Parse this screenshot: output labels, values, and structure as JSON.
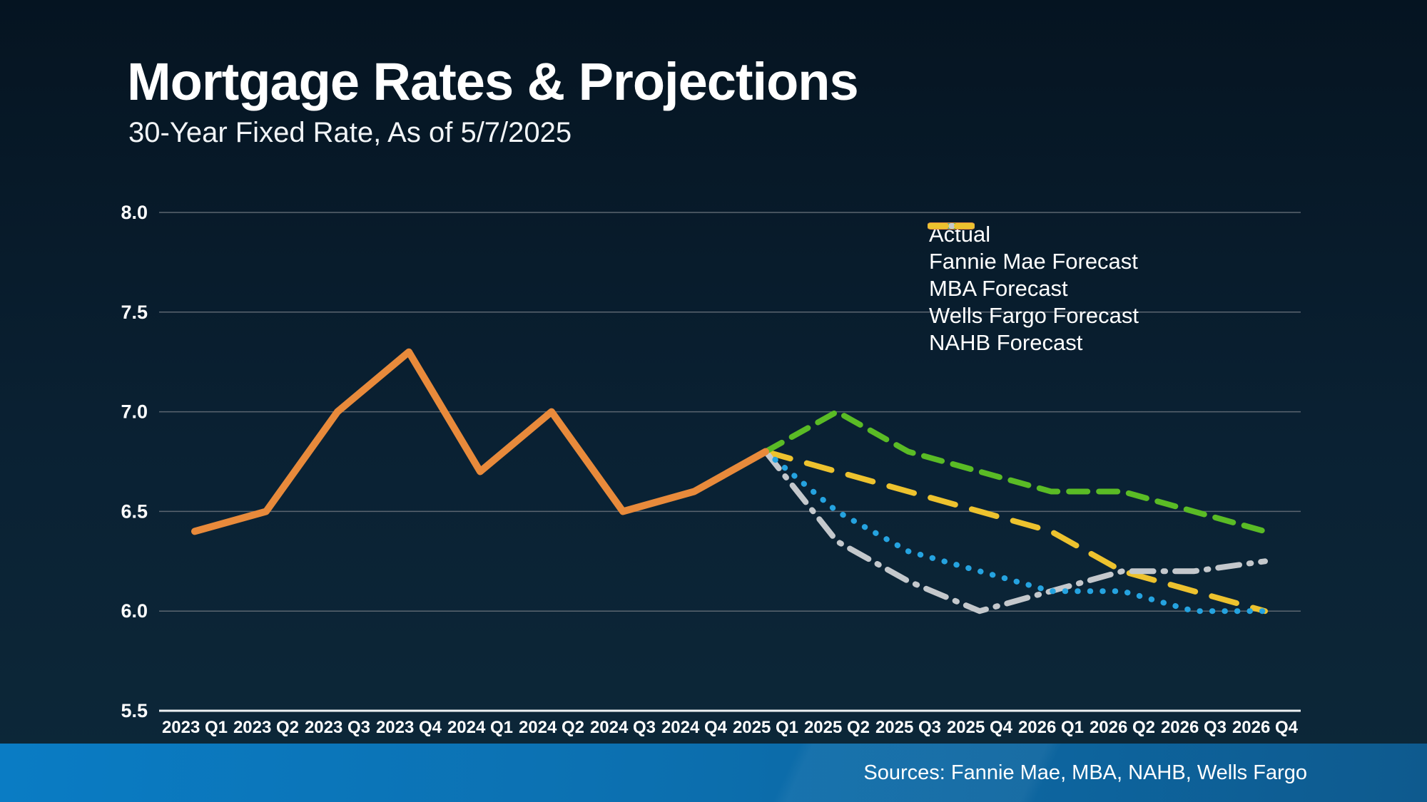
{
  "header": {
    "title": "Mortgage Rates & Projections",
    "subtitle": "30-Year Fixed Rate, As of 5/7/2025"
  },
  "footer": {
    "sources": "Sources: Fannie Mae, MBA, NAHB, Wells Fargo"
  },
  "colors": {
    "background_top": "#051421",
    "background_bottom": "#0d2839",
    "gridline": "#5b6570",
    "axis_line": "#eef1f3",
    "tick_label": "#ffffff",
    "sources_bar_left": "#0a7cc4",
    "sources_bar_right": "#0e5a8e",
    "actual": "#e88a3b",
    "fannie_mae": "#25a3e0",
    "mba": "#5abb25",
    "wells_fargo": "#c4c8cc",
    "nahb": "#edc22e"
  },
  "chart_data": {
    "type": "line",
    "title": "Mortgage Rates & Projections",
    "subtitle": "30-Year Fixed Rate, As of 5/7/2025",
    "xlabel": "",
    "ylabel": "",
    "ylim": [
      5.5,
      8.0
    ],
    "grid": "horizontal",
    "legend_position": "top-right",
    "categories": [
      "2023 Q1",
      "2023 Q2",
      "2023 Q3",
      "2023 Q4",
      "2024 Q1",
      "2024 Q2",
      "2024 Q3",
      "2024 Q4",
      "2025 Q1",
      "2025 Q2",
      "2025 Q3",
      "2025 Q4",
      "2026 Q1",
      "2026 Q2",
      "2026 Q3",
      "2026 Q4"
    ],
    "y_ticks": [
      8.0,
      7.5,
      7.0,
      6.5,
      6.0,
      5.5
    ],
    "y_tick_labels": [
      "8.0",
      "7.5",
      "7.0",
      "6.5",
      "6.0",
      "5.5"
    ],
    "series": [
      {
        "name": "Actual",
        "color": "#e88a3b",
        "line_style": "solid",
        "width": 10,
        "start_index": 0,
        "values": [
          6.4,
          6.5,
          7.0,
          7.3,
          6.7,
          7.0,
          6.5,
          6.6,
          6.8
        ]
      },
      {
        "name": "Fannie Mae Forecast",
        "color": "#25a3e0",
        "line_style": "dotted",
        "width": 8,
        "start_index": 8,
        "values": [
          6.8,
          6.5,
          6.3,
          6.2,
          6.1,
          6.1,
          6.0,
          6.0
        ]
      },
      {
        "name": "MBA Forecast",
        "color": "#5abb25",
        "line_style": "dashed",
        "width": 8,
        "start_index": 8,
        "values": [
          6.8,
          7.0,
          6.8,
          6.7,
          6.6,
          6.6,
          6.5,
          6.4
        ]
      },
      {
        "name": "Wells Fargo Forecast",
        "color": "#c4c8cc",
        "line_style": "dashdot",
        "width": 8,
        "start_index": 8,
        "values": [
          6.8,
          6.35,
          6.15,
          6.0,
          6.1,
          6.2,
          6.2,
          6.25
        ]
      },
      {
        "name": "NAHB Forecast",
        "color": "#edc22e",
        "line_style": "longdash",
        "width": 8,
        "start_index": 8,
        "values": [
          6.8,
          6.7,
          6.6,
          6.5,
          6.4,
          6.2,
          6.1,
          6.0
        ]
      }
    ]
  }
}
